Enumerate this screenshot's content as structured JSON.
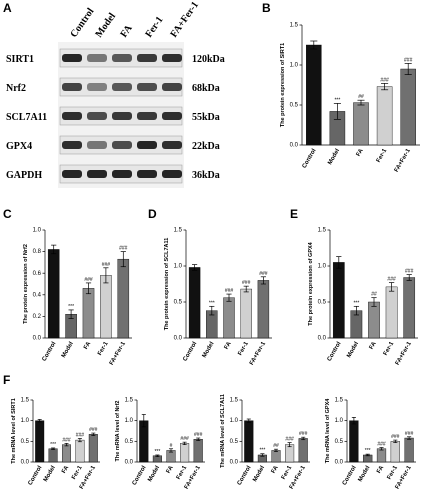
{
  "blot": {
    "label": "A",
    "lanes": [
      "Control",
      "Model",
      "FA",
      "Fer-1",
      "FA+Fer-1"
    ],
    "rows": [
      {
        "protein": "SIRT1",
        "size": "120kDa"
      },
      {
        "protein": "Nrf2",
        "size": "68kDa"
      },
      {
        "protein": "SCL7A11",
        "size": "55kDa"
      },
      {
        "protein": "GPX4",
        "size": "22kDa"
      },
      {
        "protein": "GAPDH",
        "size": "36kDa"
      }
    ]
  },
  "chart_data": [
    {
      "type": "bar",
      "label": "B",
      "ylabel": "The protein expression of SIRT1",
      "categories": [
        "Control",
        "Model",
        "FA",
        "Fer-1",
        "FA+Fer-1"
      ],
      "values": [
        1.25,
        0.42,
        0.53,
        0.73,
        0.95
      ],
      "errors": [
        0.05,
        0.1,
        0.03,
        0.04,
        0.07
      ],
      "annotations": [
        null,
        "***",
        "##",
        "###",
        "###"
      ],
      "colors": [
        "#111111",
        "#666666",
        "#8c8c8c",
        "#d0d0d0",
        "#707070"
      ],
      "ylim": [
        0,
        1.5
      ],
      "yticks": [
        {
          "value": 0,
          "label": "0.0"
        },
        0.5,
        {
          "value": 1,
          "label": "1.0"
        },
        1.5
      ]
    },
    {
      "type": "bar",
      "label": "C",
      "ylabel": "The protein expression of Nrf2",
      "categories": [
        "Control",
        "Model",
        "FA",
        "Fer-1",
        "FA+Fer-1"
      ],
      "values": [
        0.82,
        0.22,
        0.46,
        0.58,
        0.73
      ],
      "errors": [
        0.04,
        0.04,
        0.05,
        0.07,
        0.07
      ],
      "annotations": [
        null,
        "***",
        "###",
        "###",
        "###"
      ],
      "colors": [
        "#111111",
        "#666666",
        "#8c8c8c",
        "#d0d0d0",
        "#707070"
      ],
      "ylim": [
        0,
        1
      ],
      "yticks": [
        {
          "value": 0,
          "label": "0.0"
        },
        0.2,
        0.4,
        0.6,
        0.8,
        {
          "value": 1,
          "label": "1.0"
        }
      ]
    },
    {
      "type": "bar",
      "label": "D",
      "ylabel": "The protein expression of SCL7A11",
      "categories": [
        "Control",
        "Model",
        "FA",
        "Fer-1",
        "FA+Fer-1"
      ],
      "values": [
        0.98,
        0.38,
        0.56,
        0.68,
        0.8
      ],
      "errors": [
        0.04,
        0.06,
        0.05,
        0.04,
        0.05
      ],
      "annotations": [
        null,
        "***",
        "###",
        "###",
        "###"
      ],
      "colors": [
        "#111111",
        "#666666",
        "#8c8c8c",
        "#d0d0d0",
        "#707070"
      ],
      "ylim": [
        0,
        1.5
      ],
      "yticks": [
        {
          "value": 0,
          "label": "0.0"
        },
        0.5,
        {
          "value": 1,
          "label": "1.0"
        },
        1.5
      ]
    },
    {
      "type": "bar",
      "label": "E",
      "ylabel": "The protein expression of GPX4",
      "categories": [
        "Control",
        "Model",
        "FA",
        "Fer-1",
        "FA+Fer-1"
      ],
      "values": [
        1.05,
        0.38,
        0.5,
        0.71,
        0.84
      ],
      "errors": [
        0.08,
        0.06,
        0.06,
        0.06,
        0.04
      ],
      "annotations": [
        null,
        "***",
        "##",
        "###",
        "###"
      ],
      "colors": [
        "#111111",
        "#666666",
        "#8c8c8c",
        "#d0d0d0",
        "#707070"
      ],
      "ylim": [
        0,
        1.5
      ],
      "yticks": [
        {
          "value": 0,
          "label": "0.0"
        },
        0.5,
        {
          "value": 1,
          "label": "1.0"
        },
        1.5
      ]
    },
    {
      "type": "bar",
      "label": "F",
      "ylabel": "The mRNA level of SIRT1",
      "categories": [
        "Control",
        "Model",
        "FA",
        "Fer-1",
        "FA+Fer-1"
      ],
      "values": [
        1.0,
        0.32,
        0.42,
        0.53,
        0.67
      ],
      "errors": [
        0.03,
        0.02,
        0.03,
        0.04,
        0.03
      ],
      "annotations": [
        null,
        "***",
        "###",
        "###",
        "###"
      ],
      "colors": [
        "#111111",
        "#666666",
        "#8c8c8c",
        "#d0d0d0",
        "#707070"
      ],
      "ylim": [
        0,
        1.5
      ],
      "yticks": [
        {
          "value": 0,
          "label": "0.0"
        },
        0.5,
        {
          "value": 1,
          "label": "1.0"
        },
        1.5
      ]
    },
    {
      "type": "bar",
      "ylabel": "The mRNA level of Nrf2",
      "categories": [
        "Control",
        "Model",
        "FA",
        "Fer-1",
        "FA+Fer-1"
      ],
      "values": [
        1.0,
        0.15,
        0.28,
        0.45,
        0.55
      ],
      "errors": [
        0.15,
        0.02,
        0.04,
        0.03,
        0.03
      ],
      "annotations": [
        null,
        "***",
        "#",
        "###",
        "###"
      ],
      "colors": [
        "#111111",
        "#666666",
        "#8c8c8c",
        "#d0d0d0",
        "#707070"
      ],
      "ylim": [
        0,
        1.5
      ],
      "yticks": [
        {
          "value": 0,
          "label": "0.0"
        },
        0.5,
        {
          "value": 1,
          "label": "1.0"
        },
        1.5
      ]
    },
    {
      "type": "bar",
      "ylabel": "The mRNA level of SCL7A11",
      "categories": [
        "Control",
        "Model",
        "FA",
        "Fer-1",
        "FA+Fer-1"
      ],
      "values": [
        1.0,
        0.17,
        0.28,
        0.42,
        0.57
      ],
      "errors": [
        0.04,
        0.03,
        0.03,
        0.05,
        0.03
      ],
      "annotations": [
        null,
        "***",
        "##",
        "###",
        "###"
      ],
      "colors": [
        "#111111",
        "#666666",
        "#8c8c8c",
        "#d0d0d0",
        "#707070"
      ],
      "ylim": [
        0,
        1.5
      ],
      "yticks": [
        {
          "value": 0,
          "label": "0.0"
        },
        0.5,
        {
          "value": 1,
          "label": "1.0"
        },
        1.5
      ]
    },
    {
      "type": "bar",
      "ylabel": "The mRNA level of GPX4",
      "categories": [
        "Control",
        "Model",
        "FA",
        "Fer-1",
        "FA+Fer-1"
      ],
      "values": [
        1.0,
        0.17,
        0.32,
        0.5,
        0.58
      ],
      "errors": [
        0.08,
        0.02,
        0.03,
        0.03,
        0.03
      ],
      "annotations": [
        null,
        "***",
        "###",
        "###",
        "###"
      ],
      "colors": [
        "#111111",
        "#666666",
        "#8c8c8c",
        "#d0d0d0",
        "#707070"
      ],
      "ylim": [
        0,
        1.5
      ],
      "yticks": [
        {
          "value": 0,
          "label": "0.0"
        },
        0.5,
        {
          "value": 1,
          "label": "1.0"
        },
        1.5
      ]
    }
  ]
}
